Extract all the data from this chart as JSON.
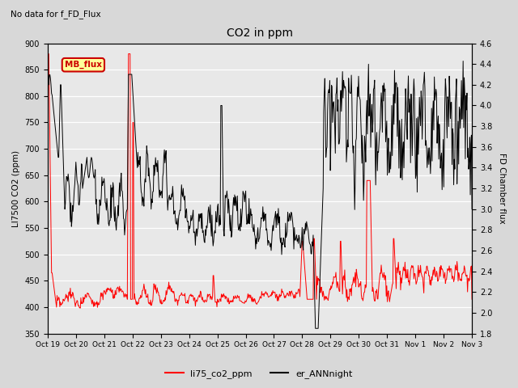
{
  "title": "CO2 in ppm",
  "suptitle_left": "No data for f_FD_Flux",
  "ylabel_left": "LI7500 CO2 (ppm)",
  "ylabel_right": "FD Chamber flux",
  "ylim_left": [
    350,
    900
  ],
  "ylim_right": [
    1.8,
    4.6
  ],
  "yticks_left": [
    350,
    400,
    450,
    500,
    550,
    600,
    650,
    700,
    750,
    800,
    850,
    900
  ],
  "yticks_right": [
    1.8,
    2.0,
    2.2,
    2.4,
    2.6,
    2.8,
    3.0,
    3.2,
    3.4,
    3.6,
    3.8,
    4.0,
    4.2,
    4.4,
    4.6
  ],
  "xtick_labels": [
    "Oct 19",
    "Oct 20",
    "Oct 21",
    "Oct 22",
    "Oct 23",
    "Oct 24",
    "Oct 25",
    "Oct 26",
    "Oct 27",
    "Oct 28",
    "Oct 29",
    "Oct 30",
    "Oct 31",
    "Nov 1",
    "Nov 2",
    "Nov 3"
  ],
  "line1_color": "red",
  "line2_color": "black",
  "line1_label": "li75_co2_ppm",
  "line2_label": "er_ANNnight",
  "legend_box_facecolor": "#ffff99",
  "legend_box_edge": "#cc0000",
  "legend_box_text": "MB_flux",
  "fig_facecolor": "#d8d8d8",
  "ax_facecolor": "#e8e8e8",
  "grid_color": "white"
}
